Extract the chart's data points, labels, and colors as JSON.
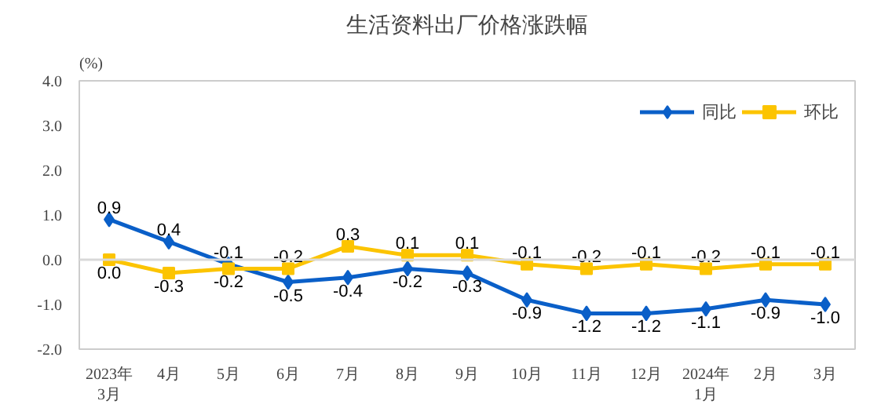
{
  "chart_data": {
    "type": "line",
    "title": "生活资料出厂价格涨跌幅",
    "ylabel": "(%)",
    "categories": [
      "2023年\n3月",
      "4月",
      "5月",
      "6月",
      "7月",
      "8月",
      "9月",
      "10月",
      "11月",
      "12月",
      "2024年\n1月",
      "2月",
      "3月"
    ],
    "series": [
      {
        "name": "同比",
        "color": "#0a5fc8",
        "marker": "diamond",
        "values": [
          0.9,
          0.4,
          -0.1,
          -0.5,
          -0.4,
          -0.2,
          -0.3,
          -0.9,
          -1.2,
          -1.2,
          -1.1,
          -0.9,
          -1.0
        ],
        "value_labels": [
          "0.9",
          "0.4",
          "-0.1",
          "-0.5",
          "-0.4",
          "-0.2",
          "-0.3",
          "-0.9",
          "-1.2",
          "-1.2",
          "-1.1",
          "-0.9",
          "-1.0"
        ]
      },
      {
        "name": "环比",
        "color": "#fcc400",
        "marker": "square",
        "values": [
          0.0,
          -0.3,
          -0.2,
          -0.2,
          0.3,
          0.1,
          0.1,
          -0.1,
          -0.2,
          -0.1,
          -0.2,
          -0.1,
          -0.1
        ],
        "value_labels": [
          "0.0",
          "-0.3",
          "-0.2",
          "-0.2",
          "0.3",
          "0.1",
          "0.1",
          "-0.1",
          "-0.2",
          "-0.1",
          "-0.2",
          "-0.1",
          "-0.1"
        ]
      }
    ],
    "ylim": [
      -2.0,
      4.0
    ],
    "yticks": [
      {
        "value": -2,
        "label": "-2.0"
      },
      {
        "value": -1,
        "label": "-1.0"
      },
      {
        "value": 0,
        "label": "0.0"
      },
      {
        "value": 1,
        "label": "1.0"
      },
      {
        "value": 2,
        "label": "2.0"
      },
      {
        "value": 3,
        "label": "3.0"
      },
      {
        "value": 4,
        "label": "4.0"
      }
    ],
    "ref_lines": [
      {
        "axis": "y",
        "value": 0,
        "color": "#d9d9d9"
      }
    ],
    "grid": false,
    "legend": "top right",
    "line_style": "solid"
  }
}
